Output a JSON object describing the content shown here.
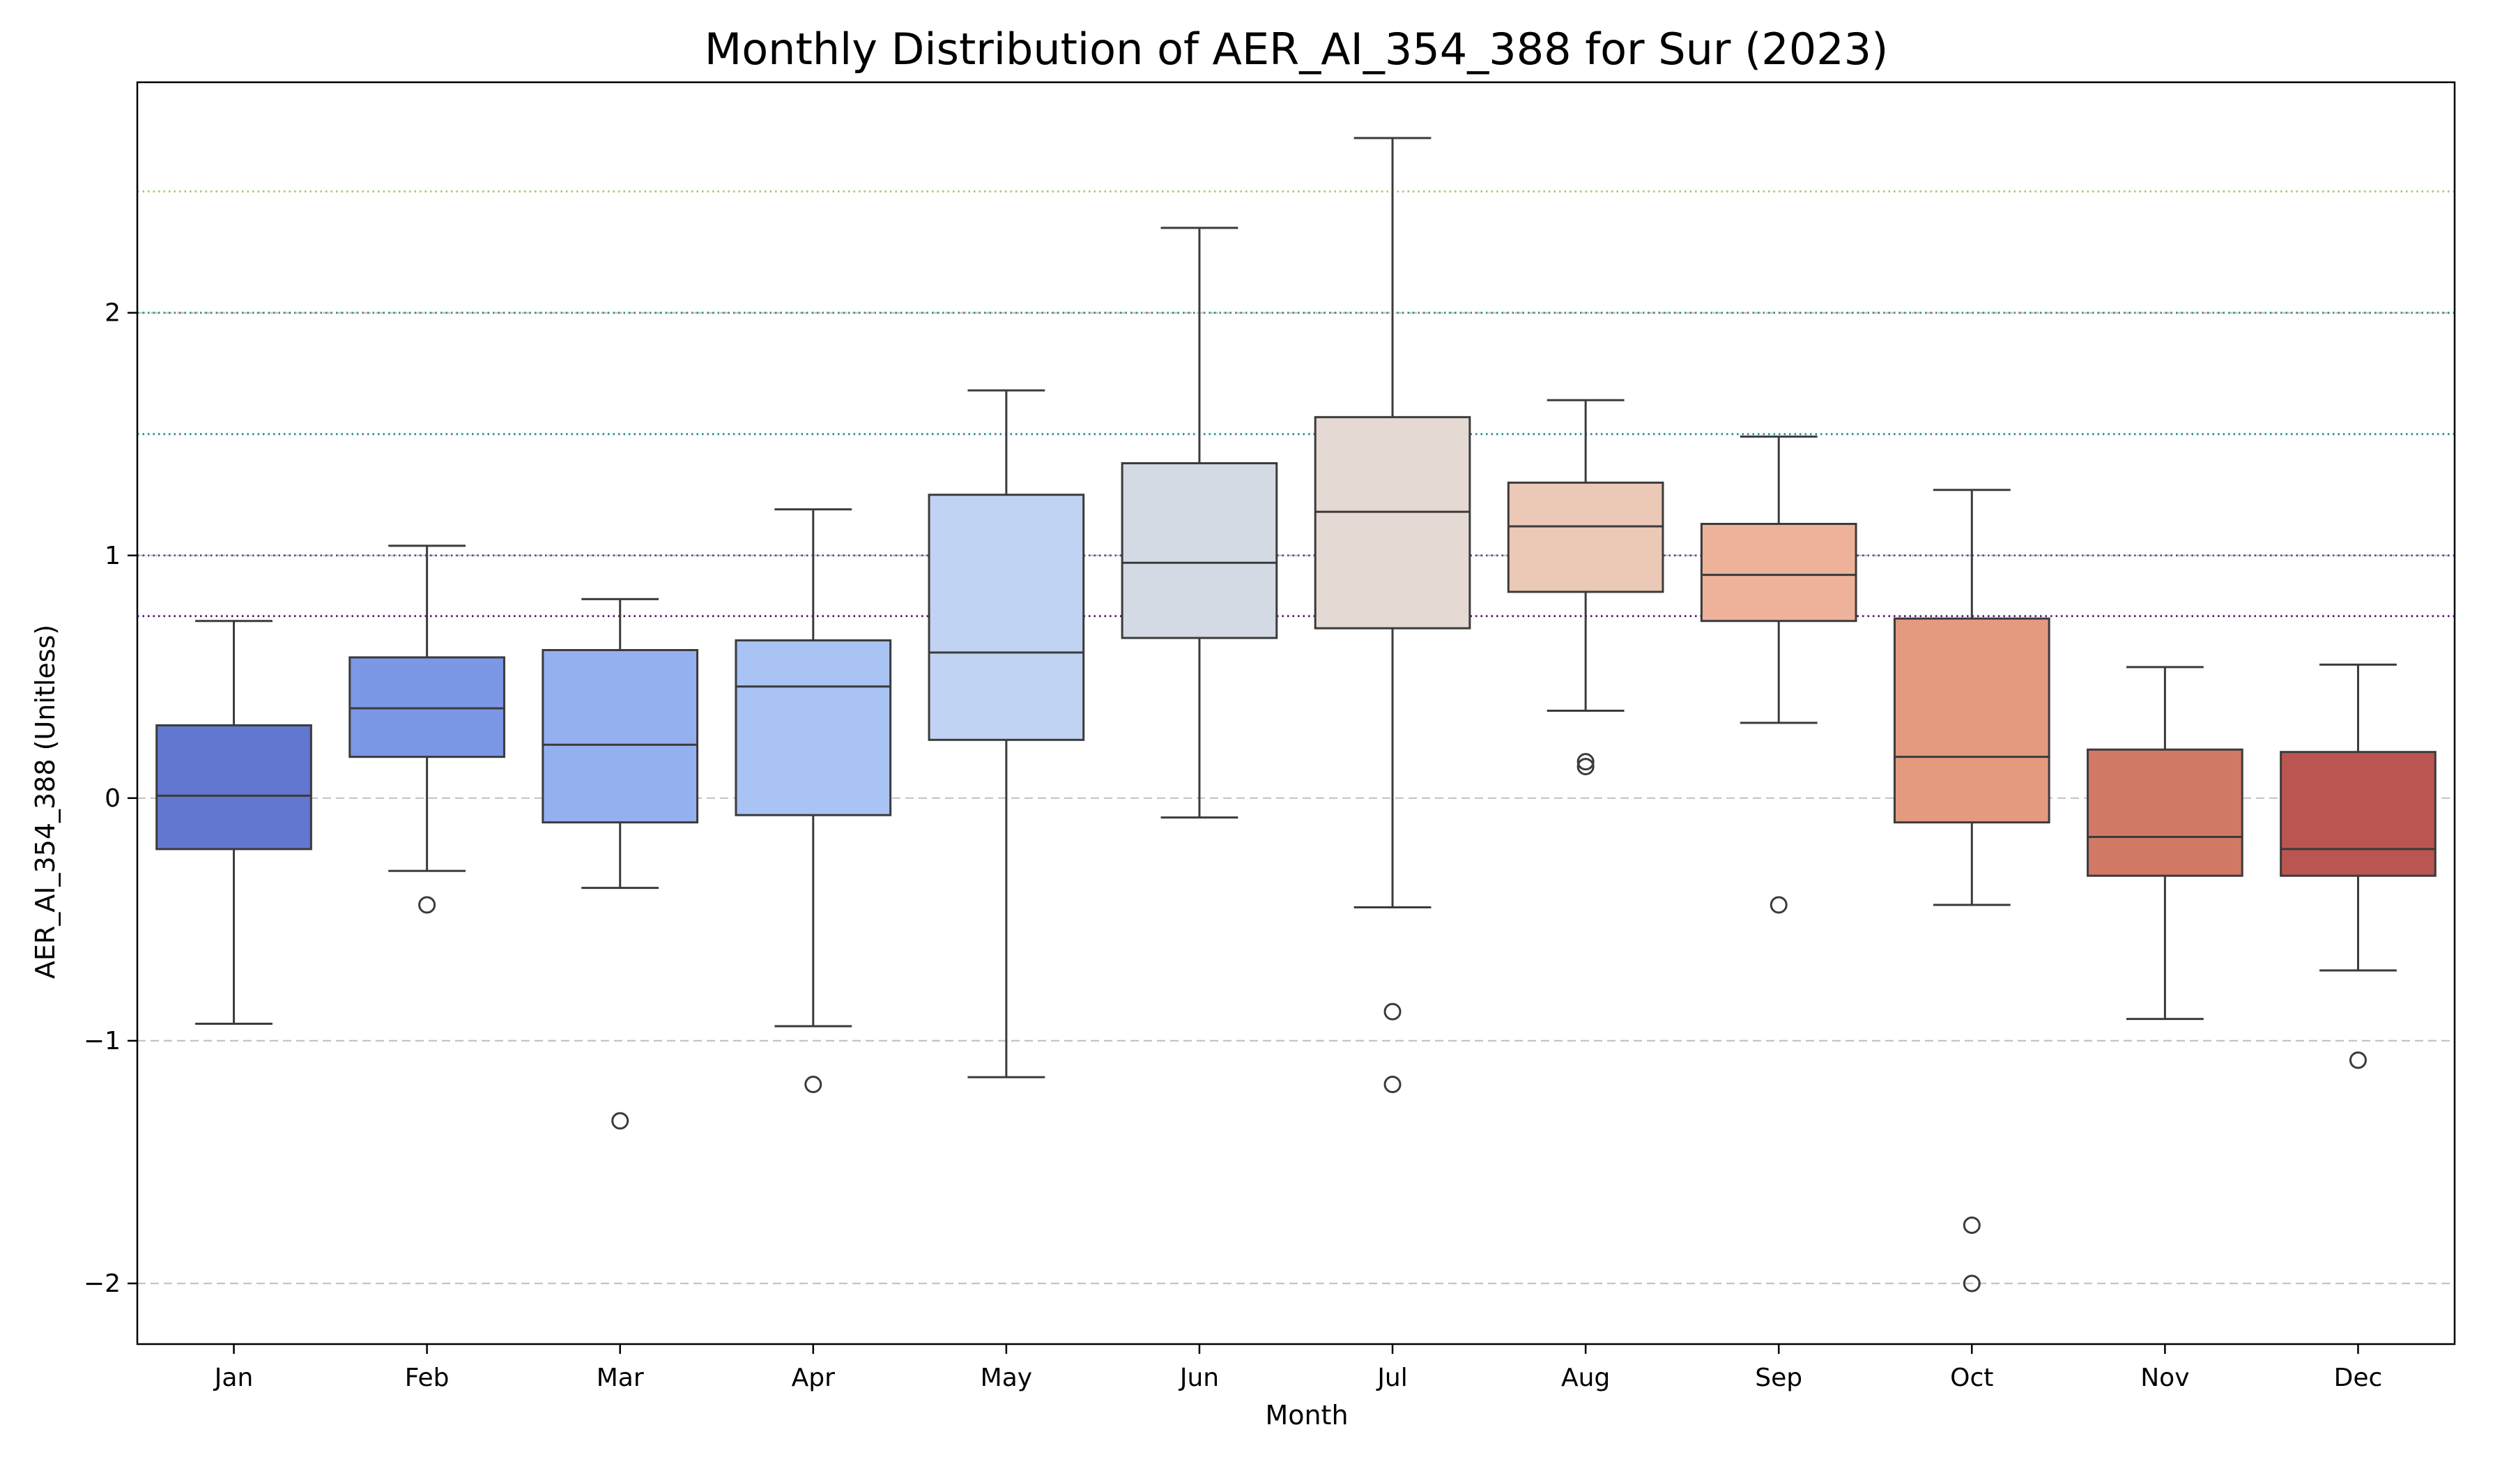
{
  "chart_data": {
    "type": "box",
    "title": "Monthly Distribution of AER_AI_354_388 for Sur (2023)",
    "xlabel": "Month",
    "ylabel": "AER_AI_354_388 (Unitless)",
    "ylim": [
      -2.25,
      2.95
    ],
    "y_ticks": [
      -2,
      -1,
      0,
      1,
      2
    ],
    "y_tick_labels": [
      "−2",
      "−1",
      "0",
      "1",
      "2"
    ],
    "grid": "dashed gray at y ticks",
    "reference_lines": [
      {
        "y": 0.75,
        "color": "#5b0a78"
      },
      {
        "y": 1.0,
        "color": "#4a4aa0"
      },
      {
        "y": 1.5,
        "color": "#2f8a9a"
      },
      {
        "y": 2.0,
        "color": "#2e9a6a"
      },
      {
        "y": 2.5,
        "color": "#8fd46a"
      }
    ],
    "categories": [
      "Jan",
      "Feb",
      "Mar",
      "Apr",
      "May",
      "Jun",
      "Jul",
      "Aug",
      "Sep",
      "Oct",
      "Nov",
      "Dec"
    ],
    "boxes": [
      {
        "month": "Jan",
        "color": "#6277d0",
        "whisker_low": -0.93,
        "q1": -0.21,
        "median": 0.01,
        "q3": 0.3,
        "whisker_high": 0.73,
        "outliers": []
      },
      {
        "month": "Feb",
        "color": "#7b97e6",
        "whisker_low": -0.3,
        "q1": 0.17,
        "median": 0.37,
        "q3": 0.58,
        "whisker_high": 1.04,
        "outliers": [
          -0.44
        ]
      },
      {
        "month": "Mar",
        "color": "#94b0ee",
        "whisker_low": -0.37,
        "q1": -0.1,
        "median": 0.22,
        "q3": 0.61,
        "whisker_high": 0.82,
        "outliers": [
          -1.33
        ]
      },
      {
        "month": "Apr",
        "color": "#aac3f5",
        "whisker_low": -0.94,
        "q1": -0.07,
        "median": 0.46,
        "q3": 0.65,
        "whisker_high": 1.19,
        "outliers": [
          -1.18
        ]
      },
      {
        "month": "May",
        "color": "#c1d3f2",
        "whisker_low": -1.15,
        "q1": 0.24,
        "median": 0.6,
        "q3": 1.25,
        "whisker_high": 1.68,
        "outliers": []
      },
      {
        "month": "Jun",
        "color": "#d4dae4",
        "whisker_low": -0.08,
        "q1": 0.66,
        "median": 0.97,
        "q3": 1.38,
        "whisker_high": 2.35,
        "outliers": []
      },
      {
        "month": "Jul",
        "color": "#e5d9d3",
        "whisker_low": -0.45,
        "q1": 0.7,
        "median": 1.18,
        "q3": 1.57,
        "whisker_high": 2.72,
        "outliers": [
          -0.88,
          -1.18
        ]
      },
      {
        "month": "Aug",
        "color": "#ecc8b6",
        "whisker_low": 0.36,
        "q1": 0.85,
        "median": 1.12,
        "q3": 1.3,
        "whisker_high": 1.64,
        "outliers": [
          0.15,
          0.13
        ]
      },
      {
        "month": "Sep",
        "color": "#eeb29b",
        "whisker_low": 0.31,
        "q1": 0.73,
        "median": 0.92,
        "q3": 1.13,
        "whisker_high": 1.49,
        "outliers": [
          -0.44
        ]
      },
      {
        "month": "Oct",
        "color": "#e39a7f",
        "whisker_low": -0.44,
        "q1": -0.1,
        "median": 0.17,
        "q3": 0.74,
        "whisker_high": 1.27,
        "outliers": [
          -1.76,
          -2.0
        ]
      },
      {
        "month": "Nov",
        "color": "#d27966",
        "whisker_low": -0.91,
        "q1": -0.32,
        "median": -0.16,
        "q3": 0.2,
        "whisker_high": 0.54,
        "outliers": []
      },
      {
        "month": "Dec",
        "color": "#bb5551",
        "whisker_low": -0.71,
        "q1": -0.32,
        "median": -0.21,
        "q3": 0.19,
        "whisker_high": 0.55,
        "outliers": [
          -1.08
        ]
      }
    ]
  }
}
